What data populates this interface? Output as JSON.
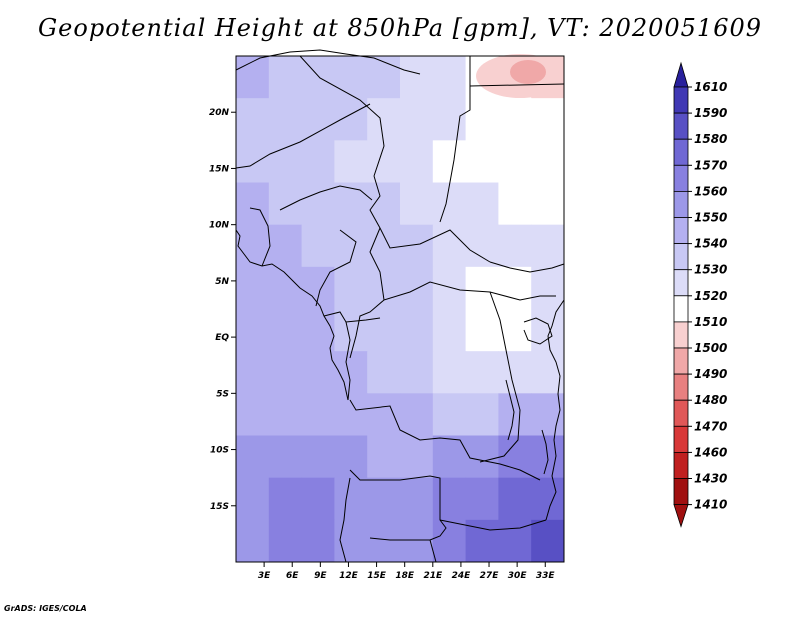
{
  "title": "Geopotential Height at 850hPa [gpm], VT: 2020051609",
  "credit": "GrADS: IGES/COLA",
  "chart_data": {
    "type": "heatmap",
    "title": "Geopotential Height at 850hPa [gpm], VT: 2020051609",
    "xlim": [
      0,
      35
    ],
    "ylim": [
      -20,
      25
    ],
    "x_ticks": [
      3,
      6,
      9,
      12,
      15,
      18,
      21,
      24,
      27,
      30,
      33
    ],
    "x_tick_labels": [
      "3E",
      "6E",
      "9E",
      "12E",
      "15E",
      "18E",
      "21E",
      "24E",
      "27E",
      "30E",
      "33E"
    ],
    "y_ticks": [
      20,
      15,
      10,
      5,
      0,
      -5,
      -10,
      -15
    ],
    "y_tick_labels": [
      "20N",
      "15N",
      "10N",
      "5N",
      "EQ",
      "5S",
      "10S",
      "15S"
    ],
    "colorbar": {
      "labels": [
        "1410",
        "1430",
        "1460",
        "1470",
        "1480",
        "1490",
        "1500",
        "1510",
        "1520",
        "1530",
        "1540",
        "1550",
        "1560",
        "1570",
        "1580",
        "1590",
        "1610"
      ],
      "colors": [
        "#a01010",
        "#c02020",
        "#d83838",
        "#e05858",
        "#e88080",
        "#f0a8a8",
        "#f8d0d0",
        "#ffffff",
        "#dcdcf8",
        "#c8c8f4",
        "#b4b0f0",
        "#9c98e8",
        "#8880e0",
        "#7068d4",
        "#5850c4",
        "#4038b4",
        "#28209c"
      ]
    },
    "grid": [
      [
        1540,
        1535,
        1530,
        1535,
        1530,
        1528,
        1520,
        1515,
        1510,
        1505
      ],
      [
        1535,
        1535,
        1530,
        1530,
        1528,
        1525,
        1520,
        1515,
        1510,
        1510
      ],
      [
        1535,
        1530,
        1530,
        1528,
        1528,
        1525,
        1518,
        1515,
        1515,
        1515
      ],
      [
        1540,
        1538,
        1535,
        1535,
        1530,
        1528,
        1522,
        1520,
        1518,
        1515
      ],
      [
        1540,
        1540,
        1538,
        1535,
        1532,
        1530,
        1525,
        1520,
        1520,
        1520
      ],
      [
        1540,
        1540,
        1540,
        1538,
        1535,
        1530,
        1525,
        1518,
        1518,
        1520
      ],
      [
        1540,
        1540,
        1540,
        1538,
        1535,
        1530,
        1525,
        1518,
        1515,
        1520
      ],
      [
        1540,
        1540,
        1540,
        1540,
        1535,
        1532,
        1528,
        1522,
        1520,
        1528
      ],
      [
        1545,
        1545,
        1545,
        1545,
        1542,
        1540,
        1538,
        1538,
        1540,
        1545
      ],
      [
        1550,
        1552,
        1552,
        1550,
        1545,
        1548,
        1550,
        1555,
        1560,
        1560
      ],
      [
        1555,
        1560,
        1560,
        1555,
        1550,
        1555,
        1560,
        1565,
        1570,
        1572
      ],
      [
        1555,
        1560,
        1560,
        1555,
        1552,
        1558,
        1565,
        1572,
        1578,
        1580
      ]
    ]
  }
}
